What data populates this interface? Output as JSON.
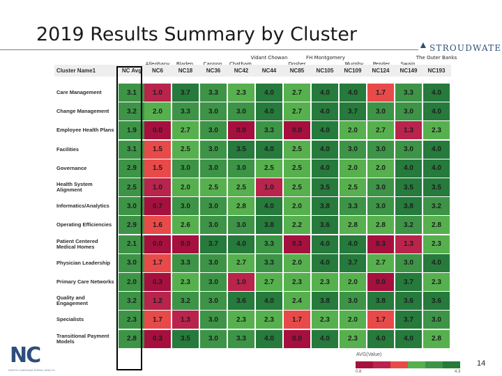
{
  "title": "2019 Results Summary by Cluster",
  "logo": {
    "word": "STROUDWATER"
  },
  "towns": [
    "Alleghany",
    "Bladen",
    "Cannon",
    "Chatham",
    "Vidant Chowan",
    "Dosher",
    "FH Montgomery",
    "Murphy",
    "Pender",
    "Swain",
    "The Outer Banks"
  ],
  "header": {
    "corner": "Cluster Name1",
    "columns": [
      "NC Avg",
      "NC6",
      "NC18",
      "NC36",
      "NC42",
      "NC44",
      "NC85",
      "NC105",
      "NC109",
      "NC124",
      "NC149",
      "NC193"
    ]
  },
  "rows": [
    {
      "label": "Care Management",
      "values": [
        "3.1",
        "1.0",
        "3.7",
        "3.3",
        "2.3",
        "4.0",
        "2.7",
        "4.0",
        "4.0",
        "1.7",
        "3.3",
        "4.0"
      ]
    },
    {
      "label": "Change Management",
      "values": [
        "3.2",
        "2.0",
        "3.3",
        "3.0",
        "3.0",
        "4.0",
        "2.7",
        "4.0",
        "3.7",
        "3.0",
        "3.0",
        "4.0"
      ]
    },
    {
      "label": "Employee Health Plans",
      "values": [
        "1.9",
        "0.0",
        "2.7",
        "3.0",
        "0.0",
        "3.3",
        "0.0",
        "4.0",
        "2.0",
        "2.7",
        "1.3",
        "2.3"
      ]
    },
    {
      "label": "Facilities",
      "values": [
        "3.1",
        "1.5",
        "2.5",
        "3.0",
        "3.5",
        "4.0",
        "2.5",
        "4.0",
        "3.0",
        "3.0",
        "3.0",
        "4.0"
      ]
    },
    {
      "label": "Governance",
      "values": [
        "2.9",
        "1.5",
        "3.0",
        "3.0",
        "3.0",
        "2.5",
        "2.5",
        "4.0",
        "2.0",
        "2.0",
        "4.0",
        "4.0"
      ]
    },
    {
      "label": "Health System Alignment",
      "values": [
        "2.5",
        "1.0",
        "2.0",
        "2.5",
        "2.5",
        "1.0",
        "2.5",
        "3.5",
        "2.5",
        "3.0",
        "3.5",
        "3.5"
      ]
    },
    {
      "label": "Informatics/Analytics",
      "values": [
        "3.0",
        "0.7",
        "3.0",
        "3.0",
        "2.8",
        "4.0",
        "2.0",
        "3.8",
        "3.3",
        "3.0",
        "3.8",
        "3.2"
      ]
    },
    {
      "label": "Operating Efficiencies",
      "values": [
        "2.9",
        "1.6",
        "2.6",
        "3.0",
        "3.0",
        "3.8",
        "2.2",
        "3.6",
        "2.8",
        "2.8",
        "3.2",
        "2.8"
      ]
    },
    {
      "label": "Patient Centered Medical Homes",
      "values": [
        "2.1",
        "0.0",
        "0.0",
        "3.7",
        "4.0",
        "3.3",
        "0.3",
        "4.0",
        "4.0",
        "0.3",
        "1.3",
        "2.3"
      ]
    },
    {
      "label": "Physician Leadership",
      "values": [
        "3.0",
        "1.7",
        "3.3",
        "3.0",
        "2.7",
        "3.3",
        "2.0",
        "4.0",
        "3.7",
        "2.7",
        "3.0",
        "4.0"
      ]
    },
    {
      "label": "Primary Care Networks",
      "values": [
        "2.0",
        "0.3",
        "2.3",
        "3.0",
        "1.0",
        "2.7",
        "2.3",
        "2.3",
        "2.0",
        "0.0",
        "3.7",
        "2.3"
      ]
    },
    {
      "label": "Quality and Engagement",
      "values": [
        "3.2",
        "1.2",
        "3.2",
        "3.0",
        "3.6",
        "4.0",
        "2.4",
        "3.8",
        "3.0",
        "3.8",
        "3.6",
        "3.6"
      ]
    },
    {
      "label": "Specialists",
      "values": [
        "2.3",
        "1.7",
        "1.3",
        "3.0",
        "2.3",
        "2.3",
        "1.7",
        "2.3",
        "2.0",
        "1.7",
        "3.7",
        "3.0"
      ]
    },
    {
      "label": "Transitional Payment Models",
      "values": [
        "2.8",
        "0.3",
        "3.5",
        "3.0",
        "3.3",
        "4.0",
        "0.0",
        "4.0",
        "2.3",
        "4.0",
        "4.0",
        "2.8"
      ]
    }
  ],
  "colors": {
    "scale": [
      "#a5103f",
      "#b8244c",
      "#e84a4a",
      "#57b04e",
      "#3d9447",
      "#257a3c"
    ],
    "header_bg": "#eeeeee",
    "frame": "#000000"
  },
  "legend": {
    "title": "AVG(Value)",
    "low": "0.8",
    "high": "4.3"
  },
  "nc_logo": {
    "text": "NC",
    "tagline": "NORTH CAROLINA RURAL HEALTH"
  },
  "page_number": "14"
}
